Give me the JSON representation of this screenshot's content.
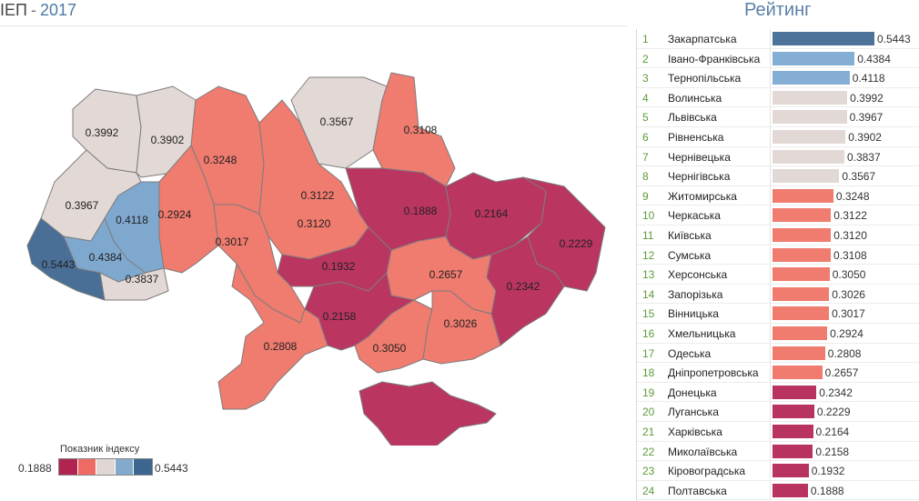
{
  "header": {
    "title_prefix": "ІЕП",
    "title_sep": "-",
    "title_year": "2017",
    "rating_title": "Рейтинг"
  },
  "legend": {
    "title": "Показник індексу",
    "min": "0.1888",
    "max": "0.5443",
    "colors": [
      "#b0244f",
      "#ee6a62",
      "#e0d6d3",
      "#83a9cc",
      "#3c6590"
    ]
  },
  "chart_data": {
    "type": "bar",
    "title": "Рейтинг",
    "categories": [
      "Закарпатська",
      "Івано-Франківська",
      "Тернопільська",
      "Волинська",
      "Львівська",
      "Рівненська",
      "Чернівецька",
      "Чернігівська",
      "Житомирська",
      "Черкаська",
      "Київська",
      "Сумська",
      "Херсонська",
      "Запорізька",
      "Вінницька",
      "Хмельницька",
      "Одеська",
      "Дніпропетровська",
      "Донецька",
      "Луганська",
      "Харківська",
      "Миколаївська",
      "Кіровоградська",
      "Полтавська"
    ],
    "ranks": [
      "1",
      "2",
      "3",
      "4",
      "5",
      "6",
      "7",
      "8",
      "9",
      "10",
      "11",
      "12",
      "13",
      "14",
      "15",
      "16",
      "17",
      "18",
      "19",
      "20",
      "21",
      "22",
      "23",
      "24"
    ],
    "values": [
      0.5443,
      0.4384,
      0.4118,
      0.3992,
      0.3967,
      0.3902,
      0.3837,
      0.3567,
      0.3248,
      0.3122,
      0.312,
      0.3108,
      0.305,
      0.3026,
      0.3017,
      0.2924,
      0.2808,
      0.2657,
      0.2342,
      0.2229,
      0.2164,
      0.2158,
      0.1932,
      0.1888
    ],
    "value_labels": [
      "0.5443",
      "0.4384",
      "0.4118",
      "0.3992",
      "0.3967",
      "0.3902",
      "0.3837",
      "0.3567",
      "0.3248",
      "0.3122",
      "0.3120",
      "0.3108",
      "0.3050",
      "0.3026",
      "0.3017",
      "0.2924",
      "0.2808",
      "0.2657",
      "0.2342",
      "0.2229",
      "0.2164",
      "0.2158",
      "0.1932",
      "0.1888"
    ],
    "colors": [
      "#4e739b",
      "#84aed4",
      "#84aed4",
      "#e2d8d5",
      "#e2d8d5",
      "#e2d8d5",
      "#e2d8d5",
      "#e2d8d5",
      "#f07b6f",
      "#f07b6f",
      "#f07b6f",
      "#f07b6f",
      "#f07b6f",
      "#f07b6f",
      "#f07b6f",
      "#f07b6f",
      "#f07b6f",
      "#f07b6f",
      "#b93360",
      "#b93360",
      "#b93360",
      "#b93360",
      "#b93360",
      "#b93360"
    ],
    "xlim": [
      0,
      0.5443
    ]
  },
  "map": {
    "regions": [
      {
        "name": "Закарпатська",
        "value": "0.5443",
        "color": "#4a6f97"
      },
      {
        "name": "Івано-Франківська",
        "value": "0.4384",
        "color": "#7fa8cf"
      },
      {
        "name": "Тернопільська",
        "value": "0.4118",
        "color": "#7fa8cf"
      },
      {
        "name": "Волинська",
        "value": "0.3992",
        "color": "#e2d8d5"
      },
      {
        "name": "Львівська",
        "value": "0.3967",
        "color": "#e2d8d5"
      },
      {
        "name": "Рівненська",
        "value": "0.3902",
        "color": "#e2d8d5"
      },
      {
        "name": "Чернівецька",
        "value": "0.3837",
        "color": "#e2d8d5"
      },
      {
        "name": "Чернігівська",
        "value": "0.3567",
        "color": "#e2d8d5"
      },
      {
        "name": "Житомирська",
        "value": "0.3248",
        "color": "#f07b6f"
      },
      {
        "name": "Черкаська",
        "value": "0.3122",
        "color": "#f07b6f"
      },
      {
        "name": "Київська",
        "value": "0.3120",
        "color": "#f07b6f"
      },
      {
        "name": "Сумська",
        "value": "0.3108",
        "color": "#f07b6f"
      },
      {
        "name": "Херсонська",
        "value": "0.3050",
        "color": "#f07b6f"
      },
      {
        "name": "Запорізька",
        "value": "0.3026",
        "color": "#f07b6f"
      },
      {
        "name": "Вінницька",
        "value": "0.3017",
        "color": "#f07b6f"
      },
      {
        "name": "Хмельницька",
        "value": "0.2924",
        "color": "#f07b6f"
      },
      {
        "name": "Одеська",
        "value": "0.2808",
        "color": "#f07b6f"
      },
      {
        "name": "Дніпропетровська",
        "value": "0.2657",
        "color": "#f07b6f"
      },
      {
        "name": "Донецька",
        "value": "0.2342",
        "color": "#bb3561"
      },
      {
        "name": "Луганська",
        "value": "0.2229",
        "color": "#bb3561"
      },
      {
        "name": "Харківська",
        "value": "0.2164",
        "color": "#bb3561"
      },
      {
        "name": "Миколаївська",
        "value": "0.2158",
        "color": "#bb3561"
      },
      {
        "name": "Кіровоградська",
        "value": "0.1932",
        "color": "#bb3561"
      },
      {
        "name": "Полтавська",
        "value": "0.1888",
        "color": "#bb3561"
      },
      {
        "name": "Крим",
        "value": "",
        "color": "#bb3561"
      }
    ]
  }
}
